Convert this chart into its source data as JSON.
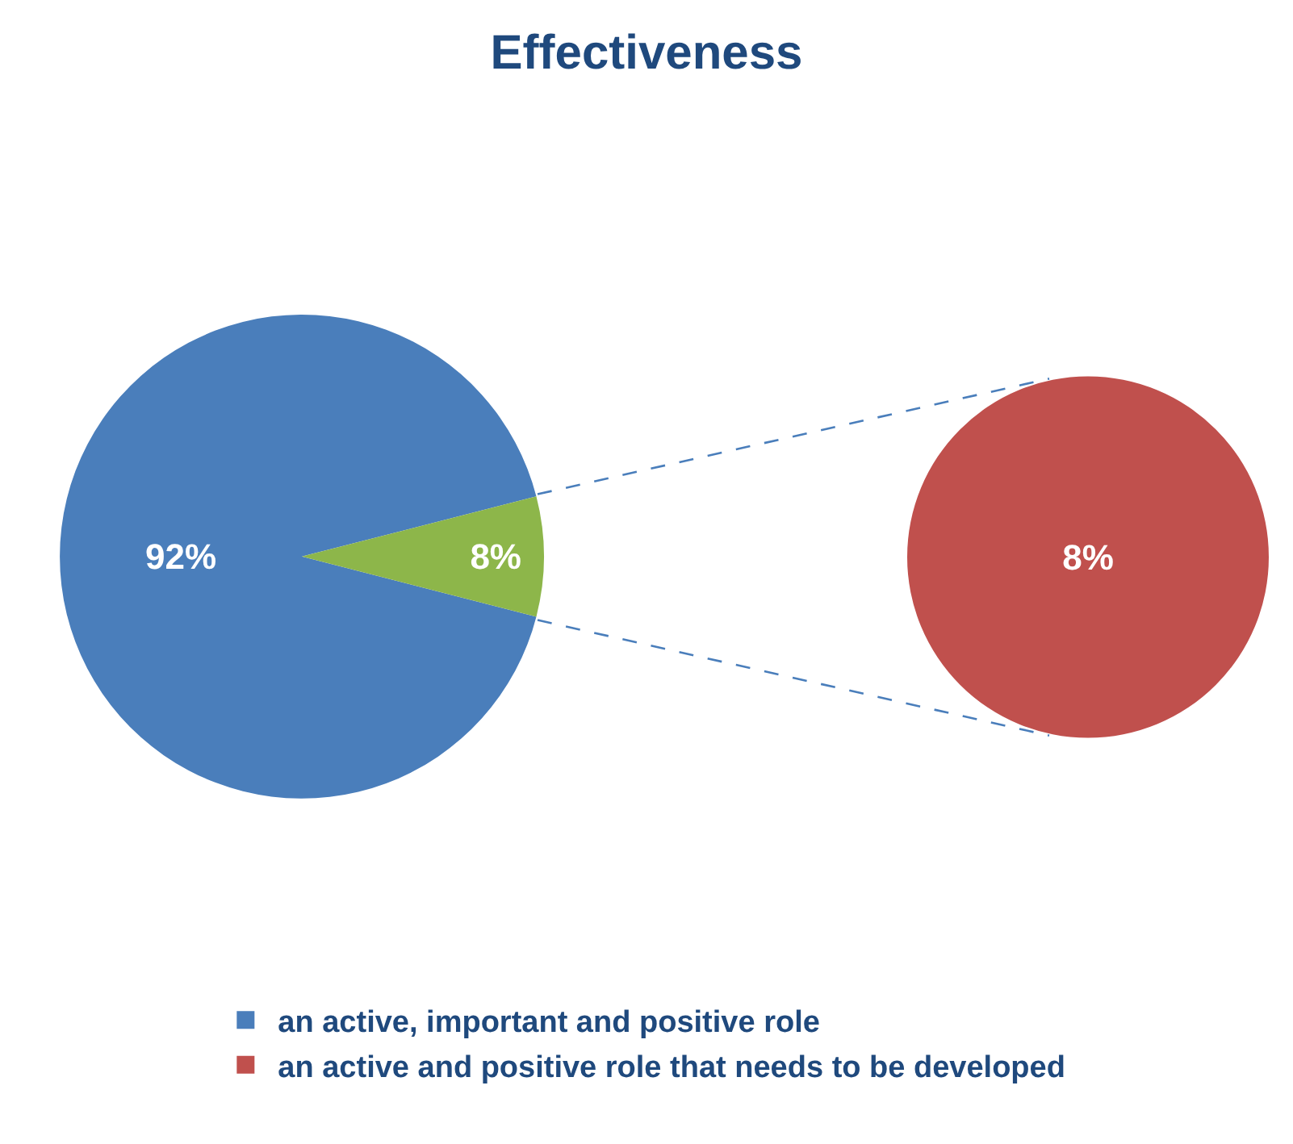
{
  "chart_data": [
    {
      "type": "pie",
      "title": "Effectiveness",
      "categories": [
        "an active, important and positive role",
        null
      ],
      "values": [
        92,
        8
      ],
      "colors": [
        "#4a7ebb",
        "#8db64a"
      ],
      "value_labels": [
        "92%",
        "8%"
      ],
      "legend": "bottom"
    },
    {
      "type": "pie",
      "categories": [
        "an active and positive role that needs to be developed"
      ],
      "values": [
        8
      ],
      "colors": [
        "#c0504d"
      ],
      "value_labels": [
        "8%"
      ],
      "legend": "bottom"
    }
  ]
}
